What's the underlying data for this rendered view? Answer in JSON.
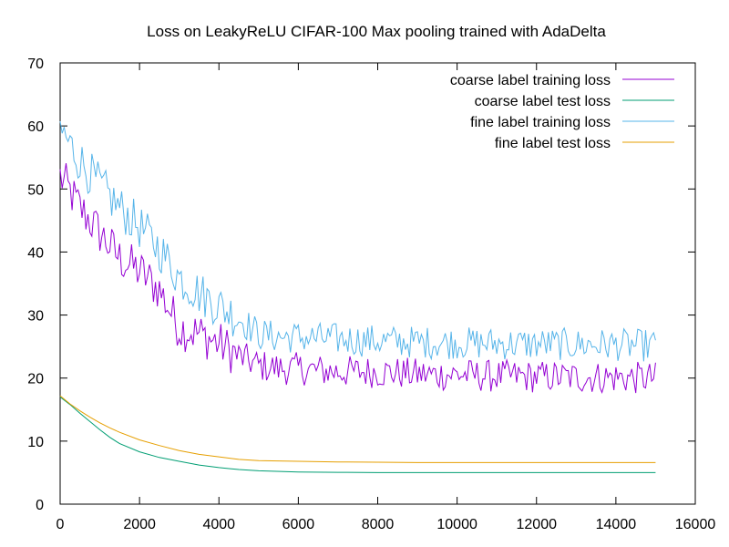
{
  "chart_data": {
    "type": "line",
    "title": "Loss on LeakyReLU CIFAR-100 Max pooling trained with AdaDelta",
    "xlabel": "",
    "ylabel": "",
    "xlim": [
      0,
      16000
    ],
    "ylim": [
      0,
      70
    ],
    "xticks": [
      0,
      2000,
      4000,
      6000,
      8000,
      10000,
      12000,
      14000,
      16000
    ],
    "yticks": [
      0,
      10,
      20,
      30,
      40,
      50,
      60,
      70
    ],
    "grid": false,
    "legend_position": "top-right",
    "series": [
      {
        "name": "coarse label training loss",
        "color": "#9400d3",
        "x": [
          0,
          500,
          1000,
          1500,
          2000,
          2500,
          3000,
          3500,
          4000,
          4500,
          5000,
          5500,
          6000,
          6500,
          7000,
          7500,
          8000,
          8500,
          9000,
          9500,
          10000,
          10500,
          11000,
          11500,
          12000,
          12500,
          13000,
          13500,
          14000,
          14500,
          15000
        ],
        "values": [
          52,
          47,
          43,
          39,
          37,
          34,
          28,
          27,
          25.5,
          23.5,
          22,
          21.5,
          21.5,
          21.2,
          21,
          21,
          21,
          20.8,
          20.6,
          20.5,
          20.6,
          20.4,
          20.3,
          20.3,
          20.2,
          20.2,
          20.1,
          20.1,
          20.1,
          20,
          20
        ]
      },
      {
        "name": "coarse label test loss",
        "color": "#009e73",
        "x": [
          0,
          250,
          500,
          750,
          1000,
          1250,
          1500,
          2000,
          2500,
          3000,
          3500,
          4000,
          4500,
          5000,
          6000,
          7000,
          8000,
          9000,
          10000,
          11000,
          12000,
          13000,
          14000,
          15000
        ],
        "values": [
          17,
          15.8,
          14.4,
          13.1,
          11.8,
          10.6,
          9.6,
          8.3,
          7.4,
          6.8,
          6.2,
          5.8,
          5.5,
          5.3,
          5.1,
          5.05,
          5.0,
          5.0,
          5.0,
          5.0,
          5.0,
          5.0,
          5.0,
          5.0
        ]
      },
      {
        "name": "fine label training loss",
        "color": "#56b4e9",
        "x": [
          0,
          500,
          1000,
          1500,
          2000,
          2500,
          3000,
          3500,
          4000,
          4500,
          5000,
          5500,
          6000,
          6500,
          7000,
          7500,
          8000,
          8500,
          9000,
          9500,
          10000,
          10500,
          11000,
          11500,
          12000,
          12500,
          13000,
          13500,
          14000,
          14500,
          15000
        ],
        "values": [
          59.5,
          54.5,
          50.5,
          47,
          44,
          40.5,
          36,
          33.5,
          31.5,
          29.5,
          27,
          26.5,
          26.5,
          26.3,
          26.2,
          26,
          25.9,
          25.8,
          25.7,
          25.6,
          25.6,
          25.5,
          25.5,
          25.4,
          25.4,
          25.4,
          25.3,
          25.3,
          25.3,
          25.2,
          25.2
        ]
      },
      {
        "name": "fine label test loss",
        "color": "#e69f00",
        "x": [
          0,
          250,
          500,
          750,
          1000,
          1250,
          1500,
          2000,
          2500,
          3000,
          3500,
          4000,
          4500,
          5000,
          6000,
          7000,
          8000,
          9000,
          10000,
          11000,
          12000,
          13000,
          14000,
          15000
        ],
        "values": [
          17.2,
          15.9,
          14.8,
          13.8,
          12.9,
          12.1,
          11.4,
          10.2,
          9.3,
          8.5,
          7.9,
          7.5,
          7.1,
          6.9,
          6.8,
          6.7,
          6.65,
          6.6,
          6.6,
          6.6,
          6.6,
          6.6,
          6.6,
          6.6
        ]
      }
    ]
  }
}
